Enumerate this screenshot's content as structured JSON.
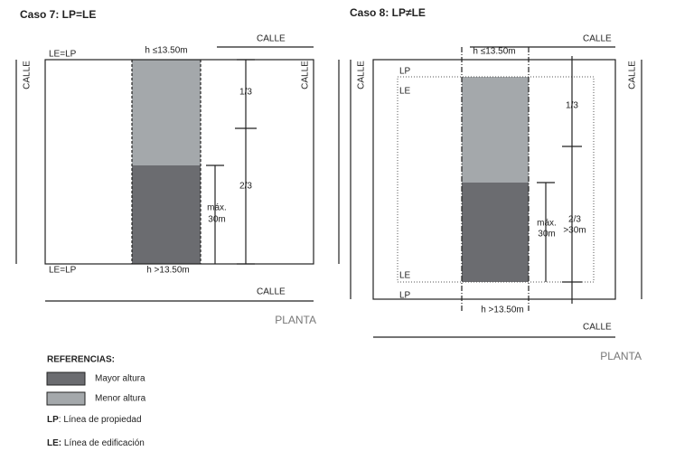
{
  "case7": {
    "title": "Caso 7: LP=LE",
    "street_top": "CALLE",
    "street_left": "CALLE",
    "street_right": "CALLE",
    "street_bottom": "CALLE",
    "line_top": "LE=LP",
    "line_bottom": "LE=LP",
    "height_top": "h ≤13.50m",
    "height_bottom": "h >13.50m",
    "third": "1/3",
    "two_thirds": "2/3",
    "max_lines": [
      "máx.",
      "30m"
    ],
    "view": "PLANTA"
  },
  "case8": {
    "title": "Caso 8: LP≠LE",
    "street_top": "CALLE",
    "street_left": "CALLE",
    "street_right": "CALLE",
    "street_bottom": "CALLE",
    "lp_top": "LP",
    "le_top": "LE",
    "le_bottom": "LE",
    "lp_bottom": "LP",
    "height_top": "h ≤13.50m",
    "height_bottom": "h >13.50m",
    "third": "1/3",
    "two_thirds_lines": [
      "2/3",
      ">30m"
    ],
    "max_lines": [
      "máx.",
      "30m"
    ],
    "view": "PLANTA"
  },
  "legend": {
    "title": "REFERENCIAS:",
    "items": [
      "Mayor altura",
      "Menor altura"
    ],
    "definitions": [
      {
        "term": "LP",
        "description": ": Línea de propiedad"
      },
      {
        "term": "LE:",
        "description": " Línea de edificación"
      }
    ]
  }
}
